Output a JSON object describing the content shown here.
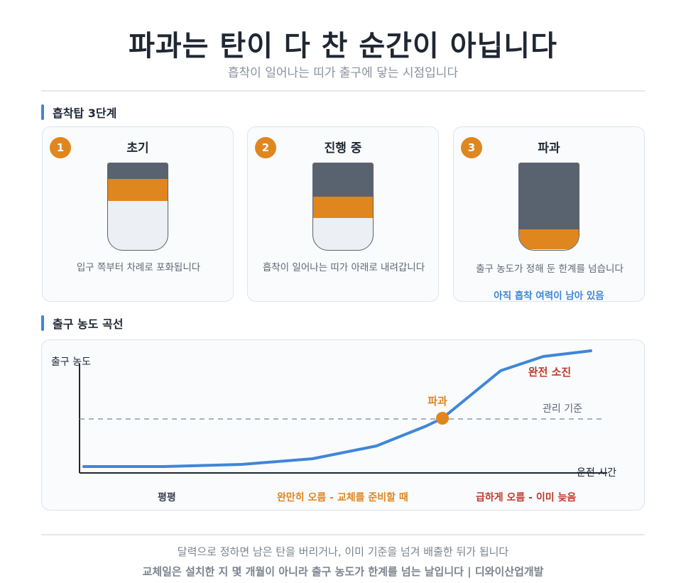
{
  "header": {
    "title": "파과는 탄이 다 찬 순간이 아닙니다",
    "subtitle": "흡착이 일어나는 띠가 출구에 닿는 시점입니다"
  },
  "stages_section": {
    "heading": "흡착탑 3단계",
    "cards": [
      {
        "number": "1",
        "title": "초기",
        "desc": "입구 쪽부터 차례로 포화됩니다",
        "note": "",
        "used_fraction": 0.18,
        "zone_fraction": 0.26
      },
      {
        "number": "2",
        "title": "진행 중",
        "desc": "흡착이 일어나는 띠가 아래로 내려갑니다",
        "note": "",
        "used_fraction": 0.39,
        "zone_fraction": 0.25
      },
      {
        "number": "3",
        "title": "파과",
        "desc": "출구 농도가 정해 둔 한계를 넘습니다",
        "note": "아직 흡착 여력이 남아 있음",
        "used_fraction": 0.77,
        "zone_fraction": 0.23
      }
    ]
  },
  "curve_section": {
    "heading": "출구 농도 곡선",
    "y_axis_label": "출구 농도",
    "x_axis_label": "운전 시간",
    "threshold_label": "관리 기준",
    "breakthrough_label": "파과",
    "exhaustion_label": "완전 소진",
    "phases": [
      {
        "label": "평평",
        "color": "#3b4350"
      },
      {
        "label": "완만히 오름 - 교체를 준비할 때",
        "color": "#e0861f"
      },
      {
        "label": "급하게 오름 - 이미 늦음",
        "color": "#c0392b"
      }
    ]
  },
  "colors": {
    "accent_blue": "#3f86d8",
    "accent_orange": "#e0861f",
    "danger_red": "#c0392b",
    "tank_used": "#596370",
    "threshold_line": "#8d99ab"
  },
  "footer": {
    "line1": "달력으로 정하면 남은 탄을 버리거나, 이미 기준을 넘겨 배출한 뒤가 됩니다",
    "line2": "교체일은 설치한 지 몇 개월이 아니라 출구 농도가 한계를 넘는 날입니다 | 디와이산업개발"
  }
}
